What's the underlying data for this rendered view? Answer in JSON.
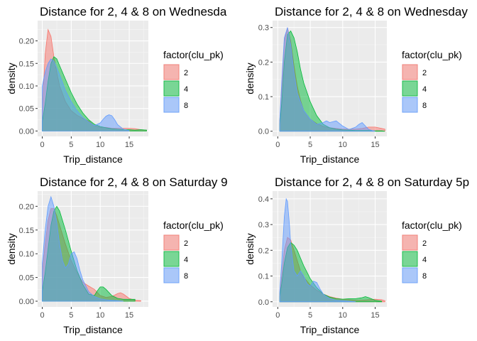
{
  "chart_data": [
    {
      "type": "area",
      "title": "Distance for 2, 4 & 8 on Wednesda",
      "xlabel": "Trip_distance",
      "ylabel": "density",
      "xlim": [
        -0.8,
        18.3
      ],
      "ylim": [
        -0.012,
        0.245
      ],
      "xticks": [
        0,
        5,
        10,
        15
      ],
      "yticks": [
        0.0,
        0.05,
        0.1,
        0.15,
        0.2
      ],
      "grid": true,
      "legend": {
        "title": "factor(clu_pk)",
        "position": "right",
        "entries": [
          "2",
          "4",
          "8"
        ]
      },
      "series": [
        {
          "name": "2",
          "color": "#F8766D",
          "x": [
            0,
            0.5,
            1,
            1.5,
            2,
            2.5,
            3,
            4,
            5,
            6,
            7,
            8,
            9,
            10,
            11,
            12,
            13,
            14,
            15,
            16,
            17,
            18
          ],
          "y": [
            0.045,
            0.17,
            0.225,
            0.21,
            0.165,
            0.13,
            0.1,
            0.065,
            0.045,
            0.035,
            0.028,
            0.022,
            0.012,
            0.008,
            0.008,
            0.006,
            0.006,
            0.006,
            0.006,
            0.005,
            0.003,
            0.002
          ]
        },
        {
          "name": "4",
          "color": "#00BA38",
          "x": [
            0,
            0.5,
            1,
            1.5,
            2,
            2.5,
            3,
            4,
            5,
            6,
            7,
            8,
            9,
            10,
            11,
            12,
            13,
            14,
            15,
            16,
            17,
            18
          ],
          "y": [
            0.02,
            0.06,
            0.11,
            0.15,
            0.165,
            0.16,
            0.145,
            0.115,
            0.085,
            0.06,
            0.04,
            0.025,
            0.015,
            0.01,
            0.007,
            0.005,
            0.004,
            0.003,
            0.003,
            0.002,
            0.003,
            0.002
          ]
        },
        {
          "name": "8",
          "color": "#619CFF",
          "x": [
            0,
            0.5,
            1,
            1.5,
            2,
            2.5,
            3,
            4,
            5,
            6,
            7,
            8,
            9,
            10,
            10.5,
            11,
            11.5,
            12,
            12.5,
            13,
            14,
            15
          ],
          "y": [
            0.1,
            0.13,
            0.15,
            0.16,
            0.155,
            0.14,
            0.125,
            0.09,
            0.065,
            0.045,
            0.03,
            0.02,
            0.012,
            0.018,
            0.026,
            0.033,
            0.036,
            0.034,
            0.025,
            0.014,
            0.004,
            0.001
          ]
        }
      ]
    },
    {
      "type": "area",
      "title": "Distance for 2, 4 & 8 on Wednesday",
      "xlabel": "Trip_distance",
      "ylabel": "density",
      "xlim": [
        -0.8,
        16.8
      ],
      "ylim": [
        -0.015,
        0.32
      ],
      "xticks": [
        0,
        5,
        10,
        15
      ],
      "yticks": [
        0.0,
        0.1,
        0.2,
        0.3
      ],
      "grid": true,
      "legend": {
        "title": "factor(clu_pk)",
        "position": "right",
        "entries": [
          "2",
          "4",
          "8"
        ]
      },
      "series": [
        {
          "name": "2",
          "color": "#F8766D",
          "x": [
            0.3,
            0.6,
            1,
            1.5,
            2,
            2.5,
            3,
            3.5,
            4,
            5,
            6,
            7,
            8,
            9,
            10,
            11,
            12,
            13,
            14,
            15,
            16,
            16.5
          ],
          "y": [
            0.03,
            0.12,
            0.26,
            0.3,
            0.26,
            0.19,
            0.13,
            0.09,
            0.06,
            0.035,
            0.022,
            0.014,
            0.01,
            0.008,
            0.006,
            0.006,
            0.006,
            0.008,
            0.012,
            0.012,
            0.008,
            0.006
          ]
        },
        {
          "name": "4",
          "color": "#00BA38",
          "x": [
            0.3,
            0.6,
            1,
            1.5,
            2,
            2.5,
            3,
            3.5,
            4,
            5,
            6,
            7,
            8,
            9,
            10,
            11,
            12,
            13,
            14,
            15,
            16,
            16.5
          ],
          "y": [
            0.02,
            0.08,
            0.2,
            0.28,
            0.29,
            0.27,
            0.23,
            0.18,
            0.14,
            0.085,
            0.045,
            0.02,
            0.01,
            0.006,
            0.004,
            0.003,
            0.002,
            0.002,
            0.002,
            0.001,
            0.001,
            0.0
          ]
        },
        {
          "name": "8",
          "color": "#619CFF",
          "x": [
            0.3,
            0.6,
            1,
            1.5,
            2,
            2.5,
            3,
            4,
            5,
            6,
            7,
            7.5,
            8,
            9,
            10,
            11,
            12,
            12.5,
            13,
            13.5,
            14,
            15
          ],
          "y": [
            0.03,
            0.14,
            0.27,
            0.3,
            0.25,
            0.17,
            0.11,
            0.06,
            0.035,
            0.02,
            0.025,
            0.03,
            0.025,
            0.03,
            0.015,
            0.005,
            0.012,
            0.02,
            0.025,
            0.015,
            0.005,
            0.0
          ]
        }
      ]
    },
    {
      "type": "area",
      "title": "Distance for 2, 4 & 8 on Saturday 9",
      "xlabel": "Trip_distance",
      "ylabel": "density",
      "xlim": [
        -0.8,
        18.3
      ],
      "ylim": [
        -0.012,
        0.232
      ],
      "xticks": [
        0,
        5,
        10,
        15
      ],
      "yticks": [
        0.0,
        0.05,
        0.1,
        0.15,
        0.2
      ],
      "grid": true,
      "legend": {
        "title": "factor(clu_pk)",
        "position": "right",
        "entries": [
          "2",
          "4",
          "8"
        ]
      },
      "series": [
        {
          "name": "2",
          "color": "#F8766D",
          "x": [
            0,
            0.5,
            1,
            1.5,
            2,
            2.5,
            3,
            4,
            5,
            6,
            7,
            8,
            9,
            10,
            11,
            12,
            13,
            13.5,
            14,
            15,
            16,
            17
          ],
          "y": [
            0.06,
            0.12,
            0.17,
            0.195,
            0.195,
            0.18,
            0.16,
            0.12,
            0.085,
            0.06,
            0.04,
            0.032,
            0.025,
            0.012,
            0.008,
            0.01,
            0.016,
            0.018,
            0.015,
            0.006,
            0.002,
            0.001
          ]
        },
        {
          "name": "4",
          "color": "#00BA38",
          "x": [
            0,
            0.5,
            1,
            1.5,
            2,
            2.5,
            3,
            4,
            5,
            6,
            7,
            8,
            9,
            9.5,
            10,
            10.5,
            11,
            12,
            13,
            14,
            15,
            16
          ],
          "y": [
            0.02,
            0.06,
            0.11,
            0.16,
            0.19,
            0.2,
            0.19,
            0.15,
            0.105,
            0.065,
            0.035,
            0.015,
            0.012,
            0.022,
            0.03,
            0.03,
            0.025,
            0.012,
            0.006,
            0.004,
            0.004,
            0.004
          ]
        },
        {
          "name": "8",
          "color": "#619CFF",
          "x": [
            0,
            0.5,
            1,
            1.5,
            2,
            2.5,
            3,
            3.5,
            4,
            4.5,
            5,
            5.5,
            6,
            6.5,
            7,
            8,
            9,
            10,
            11,
            12,
            13,
            14
          ],
          "y": [
            0.08,
            0.15,
            0.2,
            0.22,
            0.2,
            0.165,
            0.12,
            0.085,
            0.07,
            0.078,
            0.1,
            0.104,
            0.09,
            0.065,
            0.045,
            0.02,
            0.01,
            0.005,
            0.003,
            0.002,
            0.001,
            0.0
          ]
        }
      ]
    },
    {
      "type": "area",
      "title": "Distance for 2, 4 & 8 on Saturday 5p",
      "xlabel": "Trip_distance",
      "ylabel": "density",
      "xlim": [
        -0.8,
        16.8
      ],
      "ylim": [
        -0.02,
        0.43
      ],
      "xticks": [
        0,
        5,
        10,
        15
      ],
      "yticks": [
        0.0,
        0.1,
        0.2,
        0.3,
        0.4
      ],
      "grid": true,
      "legend": {
        "title": "factor(clu_pk)",
        "position": "right",
        "entries": [
          "2",
          "4",
          "8"
        ]
      },
      "series": [
        {
          "name": "2",
          "color": "#F8766D",
          "x": [
            0.3,
            0.6,
            1,
            1.5,
            2,
            2.5,
            3,
            3.5,
            4,
            5,
            6,
            7,
            8,
            9,
            10,
            11,
            12,
            13,
            14,
            15,
            16,
            16.5
          ],
          "y": [
            0.03,
            0.1,
            0.2,
            0.25,
            0.24,
            0.2,
            0.16,
            0.12,
            0.095,
            0.065,
            0.045,
            0.03,
            0.02,
            0.014,
            0.01,
            0.008,
            0.006,
            0.006,
            0.008,
            0.01,
            0.008,
            0.004
          ]
        },
        {
          "name": "4",
          "color": "#00BA38",
          "x": [
            0.3,
            0.6,
            1,
            1.5,
            2,
            2.5,
            3,
            3.5,
            4,
            5,
            6,
            7,
            8,
            9,
            10,
            11,
            12,
            13,
            13.5,
            14,
            15,
            16
          ],
          "y": [
            0.02,
            0.07,
            0.15,
            0.21,
            0.23,
            0.22,
            0.2,
            0.17,
            0.14,
            0.09,
            0.055,
            0.03,
            0.018,
            0.012,
            0.01,
            0.012,
            0.012,
            0.016,
            0.02,
            0.016,
            0.006,
            0.002
          ]
        },
        {
          "name": "8",
          "color": "#619CFF",
          "x": [
            0.3,
            0.6,
            1,
            1.3,
            1.5,
            1.8,
            2,
            2.5,
            3,
            3.5,
            4,
            4.5,
            5,
            5.5,
            6,
            6.5,
            7,
            8,
            9,
            10,
            11,
            12
          ],
          "y": [
            0.04,
            0.15,
            0.33,
            0.4,
            0.39,
            0.3,
            0.22,
            0.12,
            0.1,
            0.12,
            0.1,
            0.07,
            0.06,
            0.08,
            0.075,
            0.05,
            0.03,
            0.012,
            0.006,
            0.004,
            0.002,
            0.0
          ]
        }
      ]
    }
  ]
}
